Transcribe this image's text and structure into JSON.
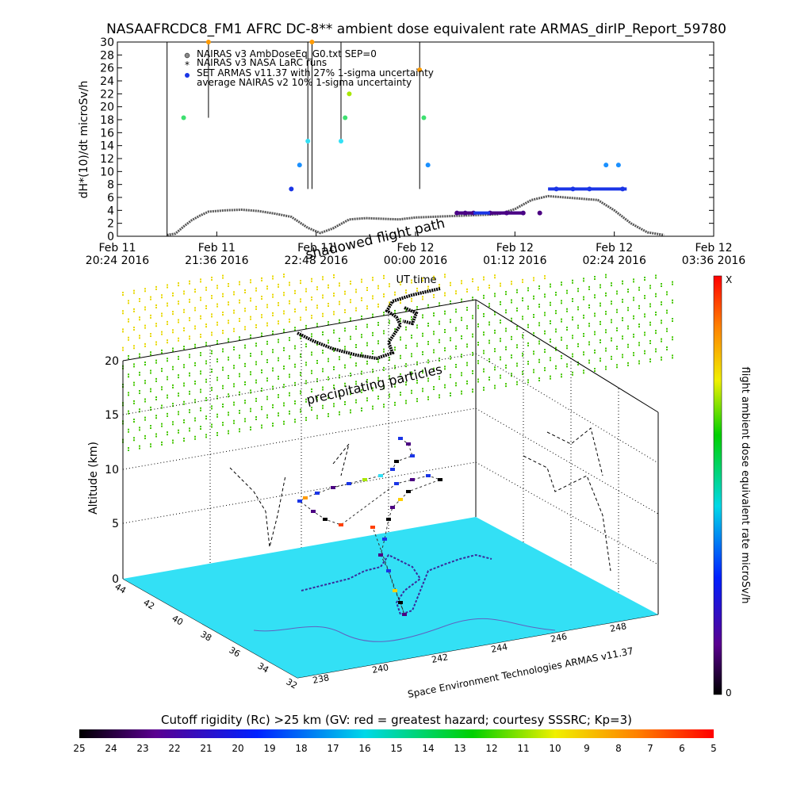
{
  "title": "NASAAFRCDC8_FM1 AFRC DC-8** ambient dose equivalent rate ARMAS_dirIP_Report_59780",
  "top_chart": {
    "ylabel": "dH*(10)/dt microSv/h",
    "xlabel": "UT time",
    "y_ticks": [
      "0",
      "2",
      "4",
      "6",
      "8",
      "10",
      "12",
      "14",
      "16",
      "18",
      "20",
      "22",
      "24",
      "26",
      "28",
      "30"
    ],
    "x_ticks": [
      {
        "line1": "Feb 11",
        "line2": "20:24 2016"
      },
      {
        "line1": "Feb 11",
        "line2": "21:36 2016"
      },
      {
        "line1": "Feb 11",
        "line2": "22:48 2016"
      },
      {
        "line1": "Feb 12",
        "line2": "00:00 2016"
      },
      {
        "line1": "Feb 12",
        "line2": "01:12 2016"
      },
      {
        "line1": "Feb 12",
        "line2": "02:24 2016"
      },
      {
        "line1": "Feb 12",
        "line2": "03:36 2016"
      }
    ],
    "legend": [
      "NAIRAS v3 AmbDoseEq_G0.txt SEP=0",
      "NAIRAS v3 NASA LaRC runs",
      "SET ARMAS v11.37 with 27% 1-sigma uncertainty",
      "average NAIRAS v2 10% 1-sigma uncertainty"
    ]
  },
  "chart_data": [
    {
      "type": "scatter",
      "title": "NASAAFRCDC8_FM1 AFRC DC-8** ambient dose equivalent rate ARMAS_dirIP_Report_59780",
      "xlabel": "UT time",
      "ylabel": "dH*(10)/dt microSv/h",
      "x_unit": "hours since Feb 11 20:24 2016",
      "xlim": [
        0,
        7.2
      ],
      "ylim": [
        0,
        30
      ],
      "series": [
        {
          "name": "NAIRAS v3 AmbDoseEq_G0.txt SEP=0",
          "x": [
            0.6,
            0.7,
            0.8,
            0.9,
            1.0,
            1.1,
            1.2,
            1.3,
            1.5,
            1.7,
            1.9,
            2.1,
            2.3,
            2.45,
            2.6,
            2.8,
            3.0,
            3.2,
            3.4,
            3.6,
            3.8,
            4.0,
            4.2,
            4.4,
            4.6,
            4.8,
            5.0,
            5.2,
            5.4,
            5.6,
            5.8,
            6.0,
            6.2,
            6.4,
            6.6
          ],
          "values": [
            0.2,
            0.4,
            1.5,
            2.5,
            3.2,
            3.8,
            3.9,
            4.0,
            4.1,
            3.9,
            3.5,
            3.0,
            1.3,
            0.5,
            1.2,
            2.6,
            2.8,
            2.7,
            2.6,
            2.9,
            3.0,
            3.1,
            3.2,
            3.3,
            3.4,
            4.2,
            5.6,
            6.2,
            6.0,
            5.8,
            5.6,
            4.0,
            2.0,
            0.6,
            0.2
          ]
        },
        {
          "name": "SET ARMAS v11.37 with 27% 1-sigma uncertainty",
          "x": [
            0.8,
            1.1,
            2.1,
            2.2,
            2.3,
            2.35,
            2.7,
            2.75,
            2.8,
            3.65,
            3.7,
            3.75,
            4.1,
            4.2,
            4.3,
            4.5,
            4.7,
            4.9,
            5.1,
            5.3,
            5.5,
            5.7,
            5.9,
            6.05,
            6.1
          ],
          "values": [
            18.3,
            30,
            7.3,
            11,
            14.7,
            30,
            14.7,
            18.3,
            22,
            25.7,
            18.3,
            11,
            3.6,
            3.6,
            3.6,
            3.6,
            3.6,
            3.6,
            3.6,
            7.3,
            7.3,
            7.3,
            11,
            11,
            7.3
          ]
        }
      ]
    },
    {
      "type": "scatter",
      "title": "shadowed flight path",
      "zlabel": "Altitude (km)",
      "z_ticks": [
        "0",
        "5",
        "10",
        "15",
        "20"
      ],
      "lat_ticks": [
        "44",
        "42",
        "40",
        "38",
        "36",
        "34",
        "32"
      ],
      "lon_ticks": [
        "238",
        "240",
        "242",
        "244",
        "246",
        "248"
      ],
      "annotations": [
        "precipitating particles",
        "Space Environment Technologies ARMAS v11.37"
      ],
      "colorbar": {
        "label": "flight ambient dose equivalent rate microSv/h",
        "min_label": "0",
        "max_label": "X"
      }
    }
  ],
  "shadow_title": "shadowed flight path",
  "map3d": {
    "zlabel": "Altitude (km)",
    "z_ticks": [
      "0",
      "5",
      "10",
      "15",
      "20"
    ],
    "lat_ticks": [
      "44",
      "42",
      "40",
      "38",
      "36",
      "34",
      "32"
    ],
    "lon_ticks": [
      "238",
      "240",
      "242",
      "244",
      "246",
      "248"
    ],
    "precip_label": "precipitating particles",
    "credit": "Space Environment Technologies ARMAS v11.37"
  },
  "dose_colorbar": {
    "label": "flight ambient dose equivalent rate microSv/h",
    "max_label": "X",
    "min_label": "0"
  },
  "bottom_bar": {
    "title": "Cutoff rigidity (Rc) >25 km (GV: red = greatest hazard; courtesy SSSRC; Kp=3)",
    "ticks": [
      "25",
      "24",
      "23",
      "22",
      "21",
      "20",
      "19",
      "18",
      "17",
      "16",
      "15",
      "14",
      "13",
      "12",
      "11",
      "10",
      "9",
      "8",
      "7",
      "6",
      "5"
    ]
  },
  "colors": {
    "terrain": "#33e0f5",
    "armas": "#1a35e6",
    "axis": "#000000"
  }
}
